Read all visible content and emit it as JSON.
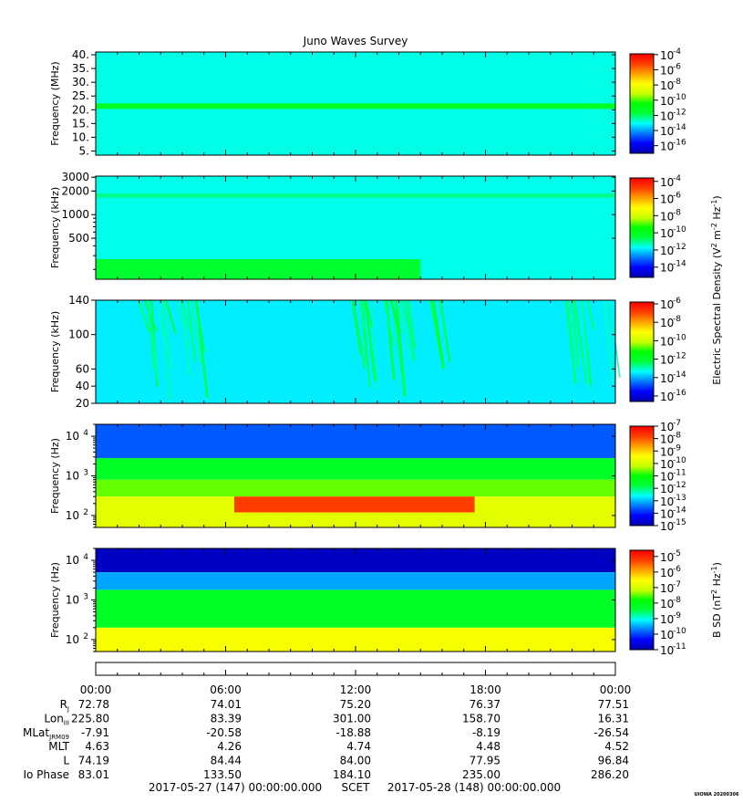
{
  "title": "Juno Waves Survey",
  "colors": {
    "colormap": [
      "#0000a8",
      "#0000ff",
      "#0078ff",
      "#00ffff",
      "#00ff3c",
      "#00ff00",
      "#c8ff00",
      "#ffff00",
      "#ffa000",
      "#ff3c00",
      "#ff0000"
    ]
  },
  "chart_data": [
    {
      "type": "heatmap",
      "panel": "hfwbr",
      "ylabel": "Frequency (MHz)",
      "ytick_labels": [
        "40.",
        "35.",
        "30.",
        "25.",
        "20.",
        "15.",
        "10.",
        "5."
      ],
      "ytick_values": [
        40,
        35,
        30,
        25,
        20,
        15,
        10,
        5
      ],
      "ylim": [
        3.5,
        41
      ],
      "yscale": "linear",
      "features": [
        {
          "freq_range": [
            3.5,
            41
          ],
          "log_density": -12.9
        },
        {
          "freq_range": [
            20.3,
            22.3
          ],
          "log_density": -11.2
        }
      ],
      "colorbar": {
        "tick_exponents": [
          "-4",
          "-6",
          "-8",
          "-10",
          "-12",
          "-14",
          "-16"
        ],
        "tick_values": [
          -4,
          -6,
          -8,
          -10,
          -12,
          -14,
          -16
        ],
        "range": [
          -17,
          -3.9
        ]
      }
    },
    {
      "type": "heatmap",
      "panel": "hfr",
      "ylabel": "Frequency (kHz)",
      "ytick_labels": [
        "3000",
        "2000",
        "1000",
        "500"
      ],
      "ytick_values": [
        3000,
        2000,
        1000,
        500
      ],
      "ylim": [
        150,
        3100
      ],
      "yscale": "log",
      "features": [
        {
          "freq_range": [
            150,
            3100
          ],
          "log_density": -11.6
        },
        {
          "freq_range": [
            150,
            270
          ],
          "log_density": -10.3,
          "time_range_hours": [
            0,
            15
          ]
        },
        {
          "freq_range": [
            1650,
            1850
          ],
          "log_density": -11.0
        }
      ],
      "colorbar": {
        "tick_exponents": [
          "-4",
          "-6",
          "-8",
          "-10",
          "-12",
          "-14"
        ],
        "tick_values": [
          -4,
          -6,
          -8,
          -10,
          -12,
          -14
        ],
        "range": [
          -15.2,
          -3.6
        ]
      }
    },
    {
      "type": "heatmap",
      "panel": "lfr-high",
      "ylabel": "Frequency (kHz)",
      "ytick_labels": [
        "140",
        "100",
        "60",
        "40",
        "20"
      ],
      "ytick_values": [
        140,
        100,
        60,
        40,
        20
      ],
      "ylim": [
        20,
        140
      ],
      "yscale": "linear",
      "background_log_density": -13.5,
      "emission_bursts_hours": [
        [
          1.7,
          5.0
        ],
        [
          11.8,
          16.2
        ],
        [
          21.6,
          24
        ]
      ],
      "colorbar": {
        "tick_exponents": [
          "-6",
          "-8",
          "-10",
          "-12",
          "-14",
          "-16"
        ],
        "tick_values": [
          -6,
          -8,
          -10,
          -12,
          -14,
          -16
        ],
        "range": [
          -16.6,
          -5.8
        ]
      },
      "colorbar_label": "Electric Spectral Density (V",
      "colorbar_label_units": [
        " m",
        " Hz",
        ")"
      ],
      "colorbar_label_sups": [
        "2",
        "-2",
        "-1"
      ]
    },
    {
      "type": "heatmap",
      "panel": "lfr-low-e",
      "ylabel": "Frequency (Hz)",
      "ytick_base": "10",
      "ytick_exponents": [
        "4",
        "3",
        "2"
      ],
      "ytick_values": [
        10000,
        1000,
        100
      ],
      "ylim": [
        50,
        20000
      ],
      "yscale": "log",
      "features": [
        {
          "freq_range": [
            2800,
            20000
          ],
          "log_density": -13.6
        },
        {
          "freq_range": [
            800,
            2800
          ],
          "log_density": -11.5
        },
        {
          "freq_range": [
            300,
            800
          ],
          "log_density": -10.6
        },
        {
          "freq_range": [
            50,
            300
          ],
          "log_density": -9.8
        },
        {
          "freq_range": [
            120,
            300
          ],
          "log_density": -7.8,
          "time_range_hours": [
            6.4,
            17.5
          ]
        }
      ],
      "colorbar": {
        "tick_exponents": [
          "-7",
          "-8",
          "-9",
          "-10",
          "-11",
          "-12",
          "-13",
          "-14",
          "-15"
        ],
        "tick_values": [
          -7,
          -8,
          -9,
          -10,
          -11,
          -12,
          -13,
          -14,
          -15
        ],
        "range": [
          -15,
          -7
        ]
      }
    },
    {
      "type": "heatmap",
      "panel": "lfr-low-b",
      "ylabel": "Frequency (Hz)",
      "ytick_base": "10",
      "ytick_exponents": [
        "4",
        "3",
        "2"
      ],
      "ytick_values": [
        10000,
        1000,
        100
      ],
      "ylim": [
        50,
        20000
      ],
      "yscale": "log",
      "features": [
        {
          "freq_range": [
            5000,
            20000
          ],
          "log_density": -10.8
        },
        {
          "freq_range": [
            1800,
            5000
          ],
          "log_density": -9.5
        },
        {
          "freq_range": [
            200,
            1800
          ],
          "log_density": -8.2
        },
        {
          "freq_range": [
            50,
            200
          ],
          "log_density": -6.6
        }
      ],
      "colorbar": {
        "tick_exponents": [
          "-5",
          "-6",
          "-7",
          "-8",
          "-9",
          "-10",
          "-11"
        ],
        "tick_values": [
          -5,
          -6,
          -7,
          -8,
          -9,
          -10,
          -11
        ],
        "range": [
          -11,
          -4.6
        ]
      },
      "colorbar_label": "B SD (nT",
      "colorbar_label_units": [
        " Hz",
        ")"
      ],
      "colorbar_label_sups": [
        "2",
        "-1"
      ]
    }
  ],
  "time_axis": {
    "labels": [
      "00:00",
      "06:00",
      "12:00",
      "18:00",
      "00:00"
    ],
    "hours": [
      0,
      6,
      12,
      18,
      24
    ],
    "range_hours": [
      0,
      24
    ]
  },
  "ephemeris": [
    {
      "label": "R",
      "sub": "J",
      "values": [
        "72.78",
        "74.01",
        "75.20",
        "76.37",
        "77.51"
      ]
    },
    {
      "label": "Lon",
      "sub": "III",
      "values": [
        "225.80",
        "83.39",
        "301.00",
        "158.70",
        "16.31"
      ]
    },
    {
      "label": "MLat",
      "sub": "JRM09",
      "values": [
        "-7.91",
        "-20.58",
        "-18.88",
        "-8.19",
        "-26.54"
      ]
    },
    {
      "label": "MLT",
      "sub": "",
      "values": [
        "4.63",
        "4.26",
        "4.74",
        "4.48",
        "4.52"
      ]
    },
    {
      "label": "L",
      "sub": "",
      "values": [
        "74.19",
        "84.44",
        "84.00",
        "77.95",
        "96.84"
      ]
    },
    {
      "label": "Io Phase",
      "sub": "",
      "values": [
        "83.01",
        "133.50",
        "184.10",
        "235.00",
        "286.20"
      ]
    }
  ],
  "footer": {
    "start": "2017-05-27 (147) 00:00:00.000",
    "scet": "SCET",
    "end": "2017-05-28 (148) 00:00:00.000",
    "stamp": "UIOWA 20200306"
  }
}
